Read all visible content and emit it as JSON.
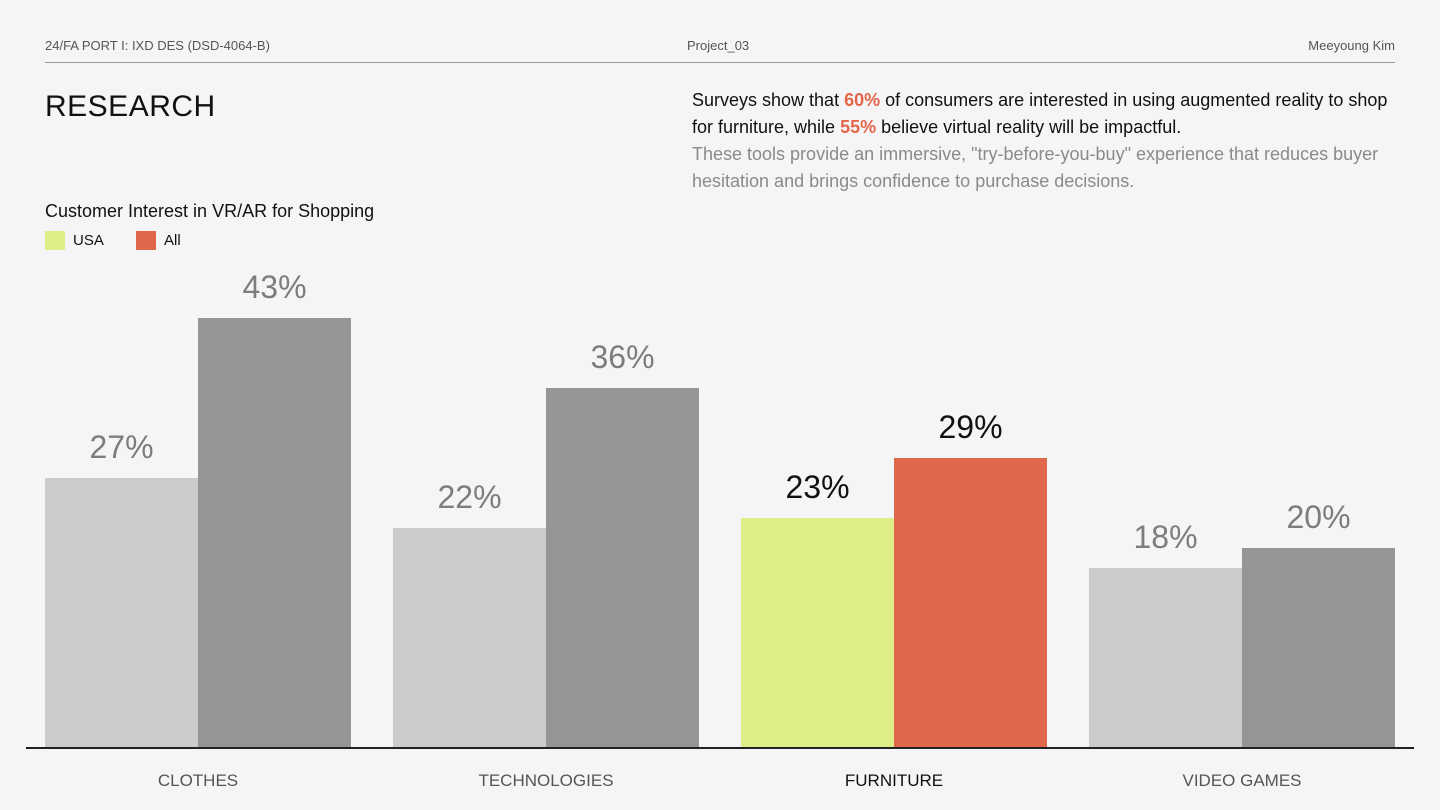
{
  "header": {
    "course": "24/FA PORT I: IXD DES (DSD-4064-B)",
    "project": "Project_03",
    "author": "Meeyoung Kim"
  },
  "page": {
    "title": "RESEARCH"
  },
  "intro": {
    "p1_a": "Surveys show that ",
    "p1_hl1": "60%",
    "p1_b": " of consumers are interested in using augmented reality to shop for furniture, while ",
    "p1_hl2": "55%",
    "p1_c": " believe virtual reality will be impactful.",
    "p2": "These tools provide an immersive, \"try-before-you-buy\" experience that reduces buyer hesitation and brings confidence to purchase decisions."
  },
  "colors": {
    "usa": "#deed85",
    "all": "#e0684a",
    "usa_muted": "#cbcbcb",
    "all_muted": "#959595",
    "label_muted": "#7d7d7d",
    "label_active": "#111111",
    "axis": "#222222",
    "accent": "#e4664a"
  },
  "chart_data": {
    "type": "bar",
    "title": "Customer Interest in VR/AR for Shopping",
    "categories": [
      "CLOTHES",
      "TECHNOLOGIES",
      "FURNITURE",
      "VIDEO GAMES"
    ],
    "series": [
      {
        "name": "USA",
        "values": [
          27,
          22,
          23,
          18
        ]
      },
      {
        "name": "All",
        "values": [
          43,
          36,
          29,
          20
        ]
      }
    ],
    "value_suffix": "%",
    "highlight_category": "FURNITURE",
    "legend_position": "top-left",
    "ylim": [
      0,
      70
    ],
    "grid": false,
    "xlabel": "",
    "ylabel": ""
  }
}
